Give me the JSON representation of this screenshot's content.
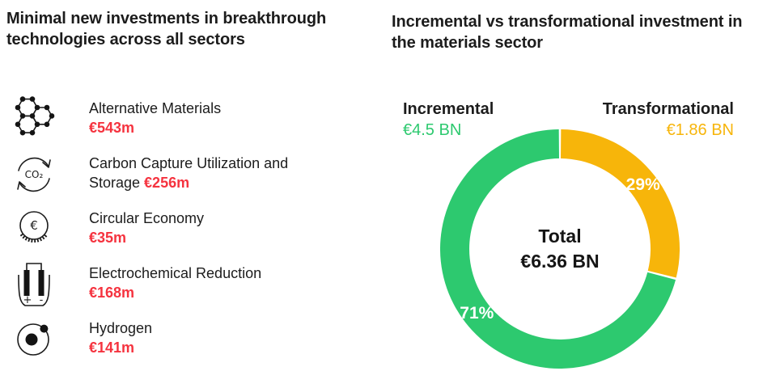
{
  "colors": {
    "incremental_green": "#2DC96F",
    "transformational_yellow": "#F7B50A",
    "value_red": "#F5333F",
    "text_dark": "#1C1C1C",
    "percent_label_white": "#FFFFFF"
  },
  "left_panel": {
    "title": "Minimal new investments in breakthrough technologies across all sectors",
    "items": [
      {
        "icon": "molecule-icon",
        "line1": "Alternative Materials",
        "line2_prefix": "",
        "value": "€543m",
        "icon_text": ""
      },
      {
        "icon": "co2-cycle-icon",
        "line1": "Carbon Capture Utilization and",
        "line2_prefix": "Storage ",
        "value": "€256m",
        "icon_text": "CO₂"
      },
      {
        "icon": "euro-coin-icon",
        "line1": "Circular Economy",
        "line2_prefix": "",
        "value": "€35m",
        "icon_text": "€"
      },
      {
        "icon": "electrolysis-icon",
        "line1": "Electrochemical Reduction",
        "line2_prefix": "",
        "value": "€168m",
        "icon_text_plus": "+",
        "icon_text_minus": "-"
      },
      {
        "icon": "atom-icon",
        "line1": "Hydrogen",
        "line2_prefix": "",
        "value": "€141m",
        "icon_text": ""
      }
    ]
  },
  "right_panel": {
    "title": "Incremental vs transformational investment in the materials sector",
    "legend": {
      "incremental_name": "Incremental",
      "incremental_amount": "€4.5 BN",
      "transformational_name": "Transformational",
      "transformational_amount": "€1.86 BN"
    },
    "center": {
      "title": "Total",
      "value": "€6.36 BN"
    }
  },
  "chart_data": {
    "type": "pie",
    "subtype": "donut",
    "title": "Incremental vs transformational investment in the materials sector",
    "series": [
      {
        "name": "Incremental",
        "value_bn_eur": 4.5,
        "percent": 71,
        "percent_label": "71%",
        "amount_label": "€4.5 BN",
        "color": "#2DC96F"
      },
      {
        "name": "Transformational",
        "value_bn_eur": 1.86,
        "percent": 29,
        "percent_label": "29%",
        "amount_label": "€1.86 BN",
        "color": "#F7B50A"
      }
    ],
    "draw_order": [
      1,
      0
    ],
    "start_angle_deg": -90,
    "direction": "clockwise",
    "total_label": "Total",
    "total_value_label": "€6.36 BN",
    "total_bn_eur": 6.36,
    "legend_position": "top",
    "percent_labels_inside_ring": true
  }
}
